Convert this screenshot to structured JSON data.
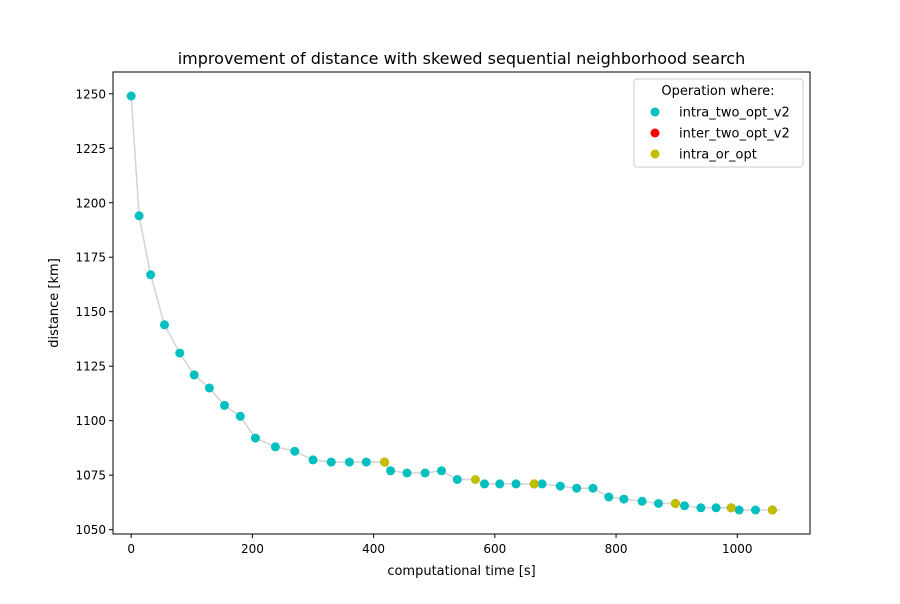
{
  "chart_data": {
    "type": "scatter",
    "title": "improvement of distance with skewed sequential neighborhood search",
    "xlabel": "computational time [s]",
    "ylabel": "distance [km]",
    "xlim": [
      -30,
      1120
    ],
    "ylim": [
      1048,
      1260
    ],
    "xticks": [
      0,
      200,
      400,
      600,
      800,
      1000
    ],
    "yticks": [
      1050,
      1075,
      1100,
      1125,
      1150,
      1175,
      1200,
      1225,
      1250
    ],
    "grid": false,
    "legend": {
      "title": "Operation where:",
      "position": "top-right",
      "entries": [
        {
          "name": "intra_two_opt_v2",
          "color": "#00bfbf"
        },
        {
          "name": "inter_two_opt_v2",
          "color": "#ff0000"
        },
        {
          "name": "intra_or_opt",
          "color": "#bfbf00"
        }
      ]
    },
    "line": {
      "color": "#d3d3d3",
      "x": [
        0,
        13,
        32,
        55,
        80,
        104,
        129,
        154,
        180,
        205,
        238,
        270,
        300,
        330,
        360,
        388,
        418,
        428,
        455,
        485,
        512,
        538,
        568,
        583,
        608,
        635,
        665,
        678,
        708,
        735,
        762,
        788,
        813,
        843,
        870,
        898,
        913,
        940,
        965,
        990,
        1003,
        1030,
        1058,
        1070
      ],
      "y": [
        1249,
        1194,
        1167,
        1144,
        1131,
        1121,
        1115,
        1107,
        1102,
        1092,
        1088,
        1086,
        1082,
        1081,
        1081,
        1081,
        1081,
        1077,
        1076,
        1076,
        1077,
        1073,
        1073,
        1071,
        1071,
        1071,
        1071,
        1071,
        1070,
        1069,
        1069,
        1065,
        1064,
        1063,
        1062,
        1062,
        1061,
        1060,
        1060,
        1060,
        1059,
        1059,
        1059,
        1059
      ]
    },
    "series": [
      {
        "name": "intra_two_opt_v2",
        "color": "#00bfbf",
        "x": [
          0,
          13,
          32,
          55,
          80,
          104,
          129,
          154,
          180,
          205,
          238,
          270,
          300,
          330,
          360,
          388,
          428,
          455,
          485,
          512,
          538,
          583,
          608,
          635,
          678,
          708,
          735,
          762,
          788,
          813,
          843,
          870,
          913,
          940,
          965,
          1003,
          1030
        ],
        "y": [
          1249,
          1194,
          1167,
          1144,
          1131,
          1121,
          1115,
          1107,
          1102,
          1092,
          1088,
          1086,
          1082,
          1081,
          1081,
          1081,
          1077,
          1076,
          1076,
          1077,
          1073,
          1071,
          1071,
          1071,
          1071,
          1070,
          1069,
          1069,
          1065,
          1064,
          1063,
          1062,
          1061,
          1060,
          1060,
          1059,
          1059
        ]
      },
      {
        "name": "inter_two_opt_v2",
        "color": "#ff0000",
        "x": [
          418,
          665,
          898,
          990,
          1058
        ],
        "y": [
          1081,
          1071,
          1062,
          1060,
          1059
        ]
      },
      {
        "name": "intra_or_opt",
        "color": "#bfbf00",
        "x": [
          418,
          568,
          665,
          898,
          990,
          1058
        ],
        "y": [
          1081,
          1073,
          1071,
          1062,
          1060,
          1059
        ]
      }
    ]
  }
}
